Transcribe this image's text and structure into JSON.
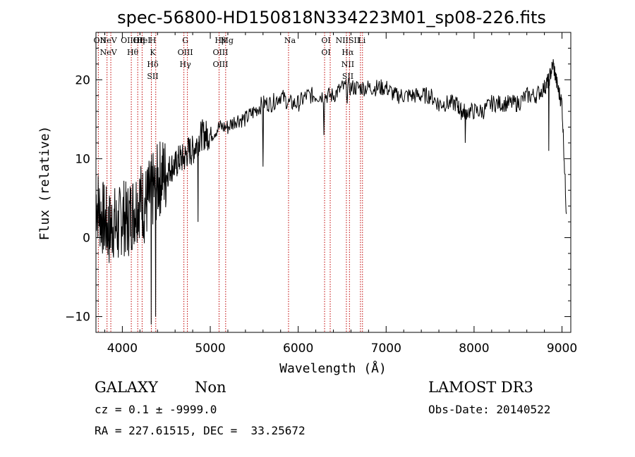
{
  "chart_data": {
    "type": "line",
    "title": "spec-56800-HD150818N334223M01_sp08-226.fits",
    "xlabel": "Wavelength (Å)",
    "ylabel": "Flux (relative)",
    "xlim": [
      3700,
      9100
    ],
    "ylim": [
      -12,
      26
    ],
    "x_ticks": [
      4000,
      5000,
      6000,
      7000,
      8000,
      9000
    ],
    "y_ticks": [
      -10,
      0,
      10,
      20
    ],
    "grid": false,
    "series": [
      {
        "color": "#000000",
        "x": [
          3700,
          3750,
          3800,
          3850,
          3900,
          3950,
          4000,
          4050,
          4100,
          4150,
          4200,
          4250,
          4300,
          4350,
          4400,
          4450,
          4500,
          4550,
          4600,
          4650,
          4700,
          4750,
          4800,
          4850,
          4900,
          4950,
          5000,
          5100,
          5200,
          5300,
          5400,
          5500,
          5600,
          5700,
          5800,
          5900,
          6000,
          6100,
          6200,
          6300,
          6400,
          6500,
          6600,
          6700,
          6800,
          6900,
          7000,
          7100,
          7200,
          7300,
          7400,
          7500,
          7600,
          7700,
          7800,
          7850,
          7900,
          8000,
          8100,
          8200,
          8300,
          8400,
          8500,
          8600,
          8700,
          8800,
          8850,
          8900,
          8950,
          9000,
          9050
        ],
        "y": [
          5,
          3,
          2,
          1,
          2,
          1,
          3,
          2,
          3,
          4,
          5,
          4,
          5,
          6,
          7,
          8,
          8,
          9,
          9,
          10,
          10,
          11,
          11,
          12,
          13,
          13,
          13,
          14,
          14,
          15,
          15,
          16,
          17,
          17,
          18,
          17,
          17,
          18,
          18,
          18,
          18,
          19,
          19,
          19,
          19,
          19,
          19,
          18,
          18,
          18,
          18,
          18,
          17,
          17,
          17,
          16,
          16,
          16,
          16,
          17,
          17,
          17,
          17,
          18,
          18,
          19,
          20,
          22,
          19,
          17,
          3
        ]
      }
    ],
    "dips": [
      {
        "x": 4330,
        "y": -11
      },
      {
        "x": 4380,
        "y": -10
      },
      {
        "x": 4860,
        "y": 2
      },
      {
        "x": 5600,
        "y": 9
      },
      {
        "x": 6290,
        "y": 13
      },
      {
        "x": 6560,
        "y": 17
      },
      {
        "x": 7600,
        "y": 16
      },
      {
        "x": 7900,
        "y": 12
      },
      {
        "x": 8850,
        "y": 11
      }
    ],
    "lines": [
      {
        "x": 3727,
        "labels": [
          "OII"
        ]
      },
      {
        "x": 3826,
        "labels": [
          "NeV",
          "NeV"
        ]
      },
      {
        "x": 3869,
        "labels": []
      },
      {
        "x": 4102,
        "labels": [
          "OIIHη",
          "Hθ"
        ]
      },
      {
        "x": 4175,
        "labels": [
          "OII"
        ]
      },
      {
        "x": 4225,
        "labels": [
          "HeI"
        ]
      },
      {
        "x": 4330,
        "labels": [
          "H",
          "K",
          "Hδ",
          "SII"
        ]
      },
      {
        "x": 4380,
        "labels": []
      },
      {
        "x": 4700,
        "labels": [
          "G",
          "OIII",
          "Hγ"
        ]
      },
      {
        "x": 4740,
        "labels": []
      },
      {
        "x": 5100,
        "labels": [
          "Hβ",
          "OIII",
          "OIII"
        ]
      },
      {
        "x": 5175,
        "labels": [
          "Mg"
        ]
      },
      {
        "x": 5890,
        "labels": [
          "Na"
        ]
      },
      {
        "x": 6300,
        "labels": [
          "OI",
          "OI"
        ]
      },
      {
        "x": 6364,
        "labels": []
      },
      {
        "x": 6548,
        "labels": [
          "NIISII",
          "Hα",
          "NII",
          "SII"
        ]
      },
      {
        "x": 6583,
        "labels": []
      },
      {
        "x": 6708,
        "labels": [
          "Li"
        ]
      },
      {
        "x": 6731,
        "labels": []
      }
    ]
  },
  "footer": {
    "class_label": "GALAXY",
    "subclass_label": "Non",
    "survey": "LAMOST DR3",
    "cz": "cz = 0.1 ± -9999.0",
    "obs_date": "Obs-Date: 20140522",
    "coords": "RA = 227.61515, DEC =  33.25672"
  }
}
